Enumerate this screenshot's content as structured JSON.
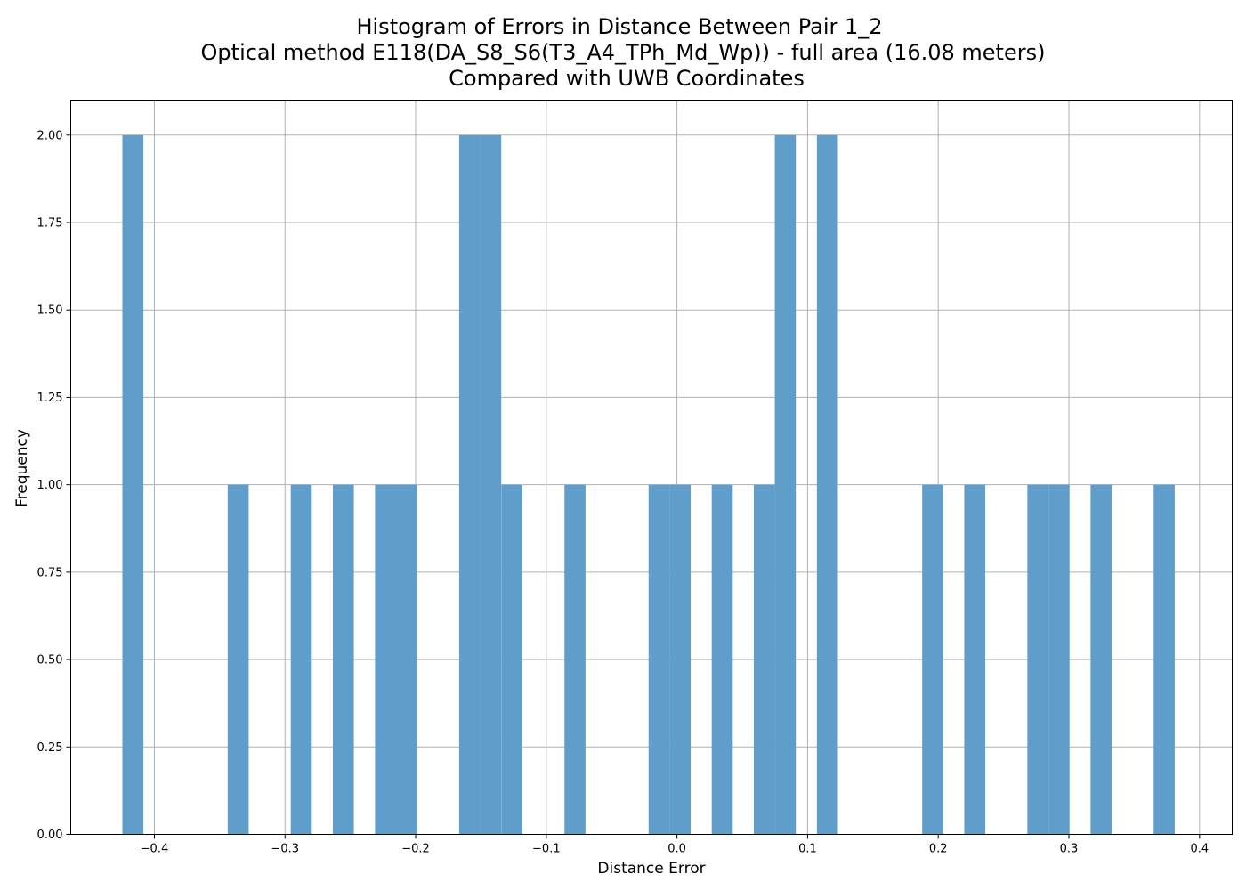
{
  "chart_data": {
    "type": "bar",
    "title_lines": [
      "Histogram of Errors in Distance Between Pair 1_2",
      "Optical method E118(DA_S8_S6(T3_A4_TPh_Md_Wp)) - full area (16.08 meters)",
      "Compared with UWB Coordinates"
    ],
    "xlabel": "Distance Error",
    "ylabel": "Frequency",
    "xlim": [
      -0.464,
      0.425
    ],
    "ylim": [
      0,
      2.1
    ],
    "grid": true,
    "bar_color": "#5f9ecb",
    "bin_width": 0.0161,
    "bin_starts": [
      -0.4245,
      -0.3439,
      -0.2956,
      -0.2634,
      -0.2311,
      -0.215,
      -0.1667,
      -0.1506,
      -0.1344,
      -0.0861,
      -0.0217,
      -0.0056,
      0.0266,
      0.0588,
      0.0749,
      0.1071,
      0.1877,
      0.2199,
      0.2682,
      0.2844,
      0.3166,
      0.3649
    ],
    "counts": [
      2,
      1,
      1,
      1,
      1,
      1,
      2,
      2,
      1,
      1,
      1,
      1,
      1,
      1,
      2,
      2,
      1,
      1,
      1,
      1,
      1,
      1
    ],
    "x_ticks": [
      -0.4,
      -0.3,
      -0.2,
      -0.1,
      0.0,
      0.1,
      0.2,
      0.3,
      0.4
    ],
    "x_tick_labels": [
      "−0.4",
      "−0.3",
      "−0.2",
      "−0.1",
      "0.0",
      "0.1",
      "0.2",
      "0.3",
      "0.4"
    ],
    "y_ticks": [
      0,
      0.25,
      0.5,
      0.75,
      1.0,
      1.25,
      1.5,
      1.75,
      2.0
    ],
    "y_tick_labels": [
      "0.00",
      "0.25",
      "0.50",
      "0.75",
      "1.00",
      "1.25",
      "1.50",
      "1.75",
      "2.00"
    ]
  }
}
